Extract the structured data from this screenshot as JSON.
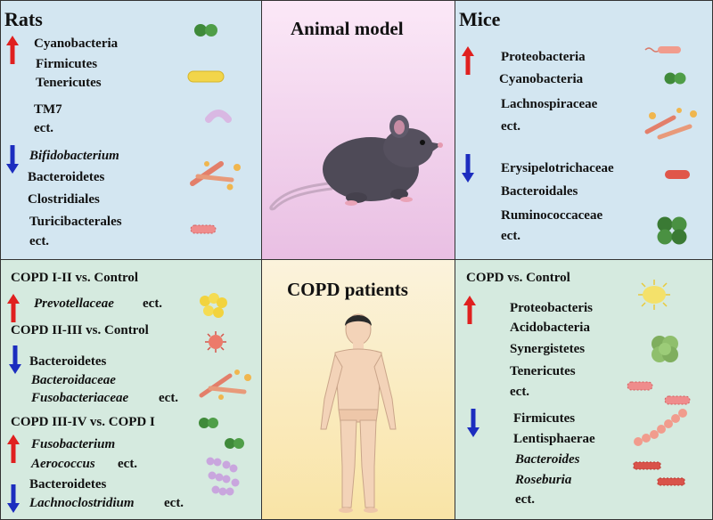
{
  "colors": {
    "rats_bg": "#d3e6f1",
    "mice_bg": "#d3e6f1",
    "animal_center_bg": "#efc9e9",
    "patients_left_bg": "#d5eadf",
    "patients_right_bg": "#d5eadf",
    "patients_center_bg": "#fbeec4",
    "up_arrow": "#e0201f",
    "down_arrow": "#1c2dbf"
  },
  "center": {
    "animal_title": "Animal model",
    "patients_title": "COPD patients"
  },
  "rats": {
    "title": "Rats",
    "up": [
      "Cyanobacteria",
      "Firmicutes",
      "Tenericutes",
      "TM7",
      "ect."
    ],
    "down_first": "Bifidobacterium",
    "down": [
      "Bacteroidetes",
      "Clostridiales",
      "Turicibacterales",
      "ect."
    ]
  },
  "mice": {
    "title": "Mice",
    "up": [
      "Proteobacteria",
      "Cyanobacteria",
      "Lachnospiraceae",
      "ect."
    ],
    "down": [
      "Erysipelotrichaceae",
      "Bacteroidales",
      "Ruminococcaceae",
      "ect."
    ]
  },
  "patients_left": {
    "group1_title": "COPD I-II vs. Control",
    "group1_taxon": "Prevotellaceae",
    "group1_suffix": "ect.",
    "group2_title": "COPD II-III vs. Control",
    "group2_item1": "Bacteroidetes",
    "group2_item2": "Bacteroidaceae",
    "group2_item3": "Fusobacteriaceae",
    "group2_suffix": "ect.",
    "group3_title": "COPD III-IV vs. COPD I",
    "group3_up1": "Fusobacterium",
    "group3_up2": "Aerococcus",
    "group3_up_suffix": "ect.",
    "group3_down1": "Bacteroidetes",
    "group3_down2": "Lachnoclostridium",
    "group3_down_suffix": "ect."
  },
  "patients_right": {
    "title": "COPD vs. Control",
    "up": [
      "Proteobacteris",
      "Acidobacteria",
      "Synergistetes",
      "Tenericutes",
      "ect."
    ],
    "down_plain": [
      "Firmicutes",
      "Lentisphaerae"
    ],
    "down_italic": [
      "Bacteroides",
      "Roseburia"
    ],
    "down_suffix": "ect."
  }
}
